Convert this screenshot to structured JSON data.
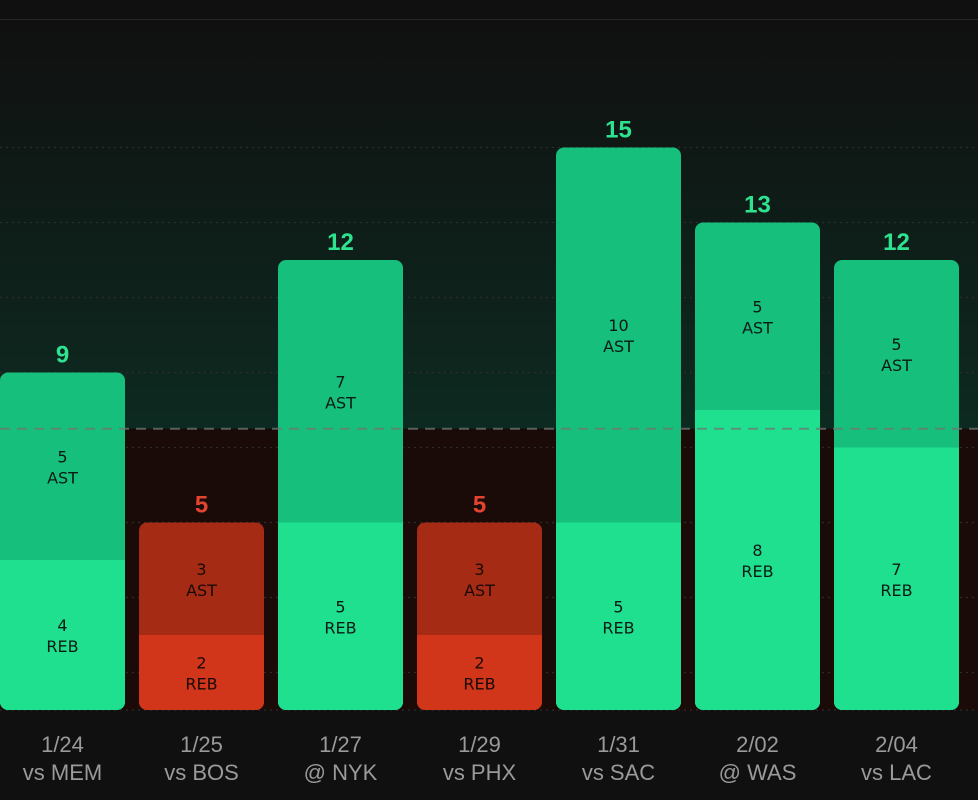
{
  "chart_data": {
    "type": "bar",
    "stacked": true,
    "title": "",
    "xlabel": "",
    "ylabel": "",
    "ylim": [
      0,
      15
    ],
    "threshold": 7.5,
    "categories": [
      "1/24",
      "1/25",
      "1/27",
      "1/29",
      "1/31",
      "2/02",
      "2/04"
    ],
    "opponents": [
      "vs MEM",
      "vs BOS",
      "@ NYK",
      "vs PHX",
      "vs SAC",
      "@ WAS",
      "vs LAC"
    ],
    "series": [
      {
        "name": "REB",
        "values": [
          4,
          2,
          5,
          2,
          5,
          8,
          7
        ]
      },
      {
        "name": "AST",
        "values": [
          5,
          3,
          7,
          3,
          10,
          5,
          5
        ]
      }
    ],
    "totals": [
      9,
      5,
      12,
      5,
      15,
      13,
      12
    ]
  },
  "colors": {
    "over_reb": "#1fe08f",
    "over_ast": "#17bf7c",
    "over_text": "#2ee28f",
    "under_reb": "#d1361a",
    "under_ast": "#a52b15",
    "under_text": "#e24430",
    "background": "#101010"
  }
}
